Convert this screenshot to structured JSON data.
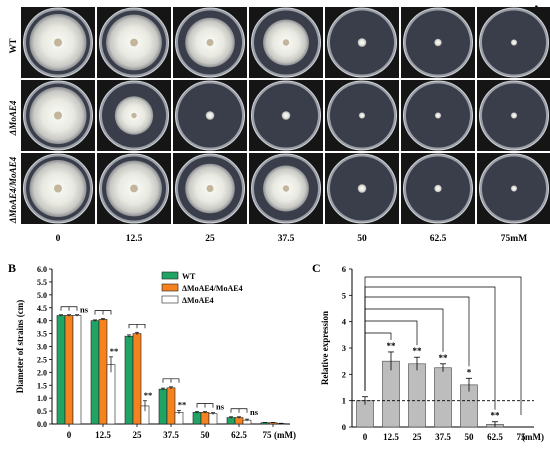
{
  "figure": {
    "panel_letters": [
      "A",
      "B",
      "C"
    ],
    "panel_a": {
      "rows": [
        {
          "label": "WT",
          "italic": false
        },
        {
          "label": "ΔMoAE4",
          "italic": true
        },
        {
          "label": "ΔMoAE4/MoAE4",
          "italic": true
        }
      ],
      "concentrations": [
        "0",
        "12.5",
        "25",
        "37.5",
        "50",
        "62.5",
        "75mM"
      ],
      "colony_relative_size": [
        [
          0.92,
          0.9,
          0.8,
          0.74,
          0.14,
          0.12,
          0.1
        ],
        [
          0.92,
          0.62,
          0.14,
          0.14,
          0.1,
          0.1,
          0.1
        ],
        [
          0.92,
          0.9,
          0.8,
          0.74,
          0.14,
          0.12,
          0.1
        ]
      ]
    }
  },
  "chart_data": [
    {
      "type": "bar",
      "panel": "B",
      "categories": [
        "0",
        "12.5",
        "25",
        "37.5",
        "50",
        "62.5",
        "75"
      ],
      "x_unit_label": "(mM)",
      "ylabel": "Diameter of strains (cm)",
      "ylim": [
        0,
        6
      ],
      "yticks": [
        "0.0",
        "0.5",
        "1.0",
        "1.5",
        "2.0",
        "2.5",
        "3.0",
        "3.5",
        "4.0",
        "4.5",
        "5.0",
        "5.5",
        "6.0"
      ],
      "legend_position": "top-right",
      "series": [
        {
          "name": "WT",
          "color": "#1fa463",
          "values": [
            4.2,
            4.0,
            3.4,
            1.35,
            0.45,
            0.25,
            0.05
          ],
          "errors": [
            0.03,
            0.03,
            0.05,
            0.04,
            0.03,
            0.03,
            0.01
          ]
        },
        {
          "name": "ΔMoAE4/MoAE4",
          "color": "#f5821f",
          "values": [
            4.2,
            4.05,
            3.5,
            1.4,
            0.45,
            0.25,
            0.05
          ],
          "errors": [
            0.03,
            0.03,
            0.05,
            0.04,
            0.03,
            0.03,
            0.01
          ]
        },
        {
          "name": "ΔMoAE4",
          "color": "#ffffff",
          "values": [
            4.2,
            2.3,
            0.7,
            0.45,
            0.4,
            0.15,
            0.02
          ],
          "errors": [
            0.03,
            0.3,
            0.2,
            0.07,
            0.04,
            0.04,
            0.01
          ]
        }
      ],
      "significance": [
        "ns",
        "**",
        "**",
        "**",
        "ns",
        "ns",
        ""
      ]
    },
    {
      "type": "bar",
      "panel": "C",
      "categories": [
        "0",
        "12.5",
        "25",
        "37.5",
        "50",
        "62.5",
        "75"
      ],
      "x_unit_label": "(mM)",
      "ylabel": "Relative expression",
      "ylim": [
        0,
        6
      ],
      "yticks": [
        "0",
        "1",
        "2",
        "3",
        "4",
        "5",
        "6"
      ],
      "bar_color": "#bdbdbd",
      "values": [
        1.0,
        2.5,
        2.4,
        2.25,
        1.6,
        0.1,
        0.0
      ],
      "errors": [
        0.15,
        0.35,
        0.25,
        0.15,
        0.25,
        0.1,
        0.0
      ],
      "significance": [
        "",
        "**",
        "**",
        "**",
        "*",
        "**",
        ""
      ],
      "reference_line": 1
    }
  ]
}
